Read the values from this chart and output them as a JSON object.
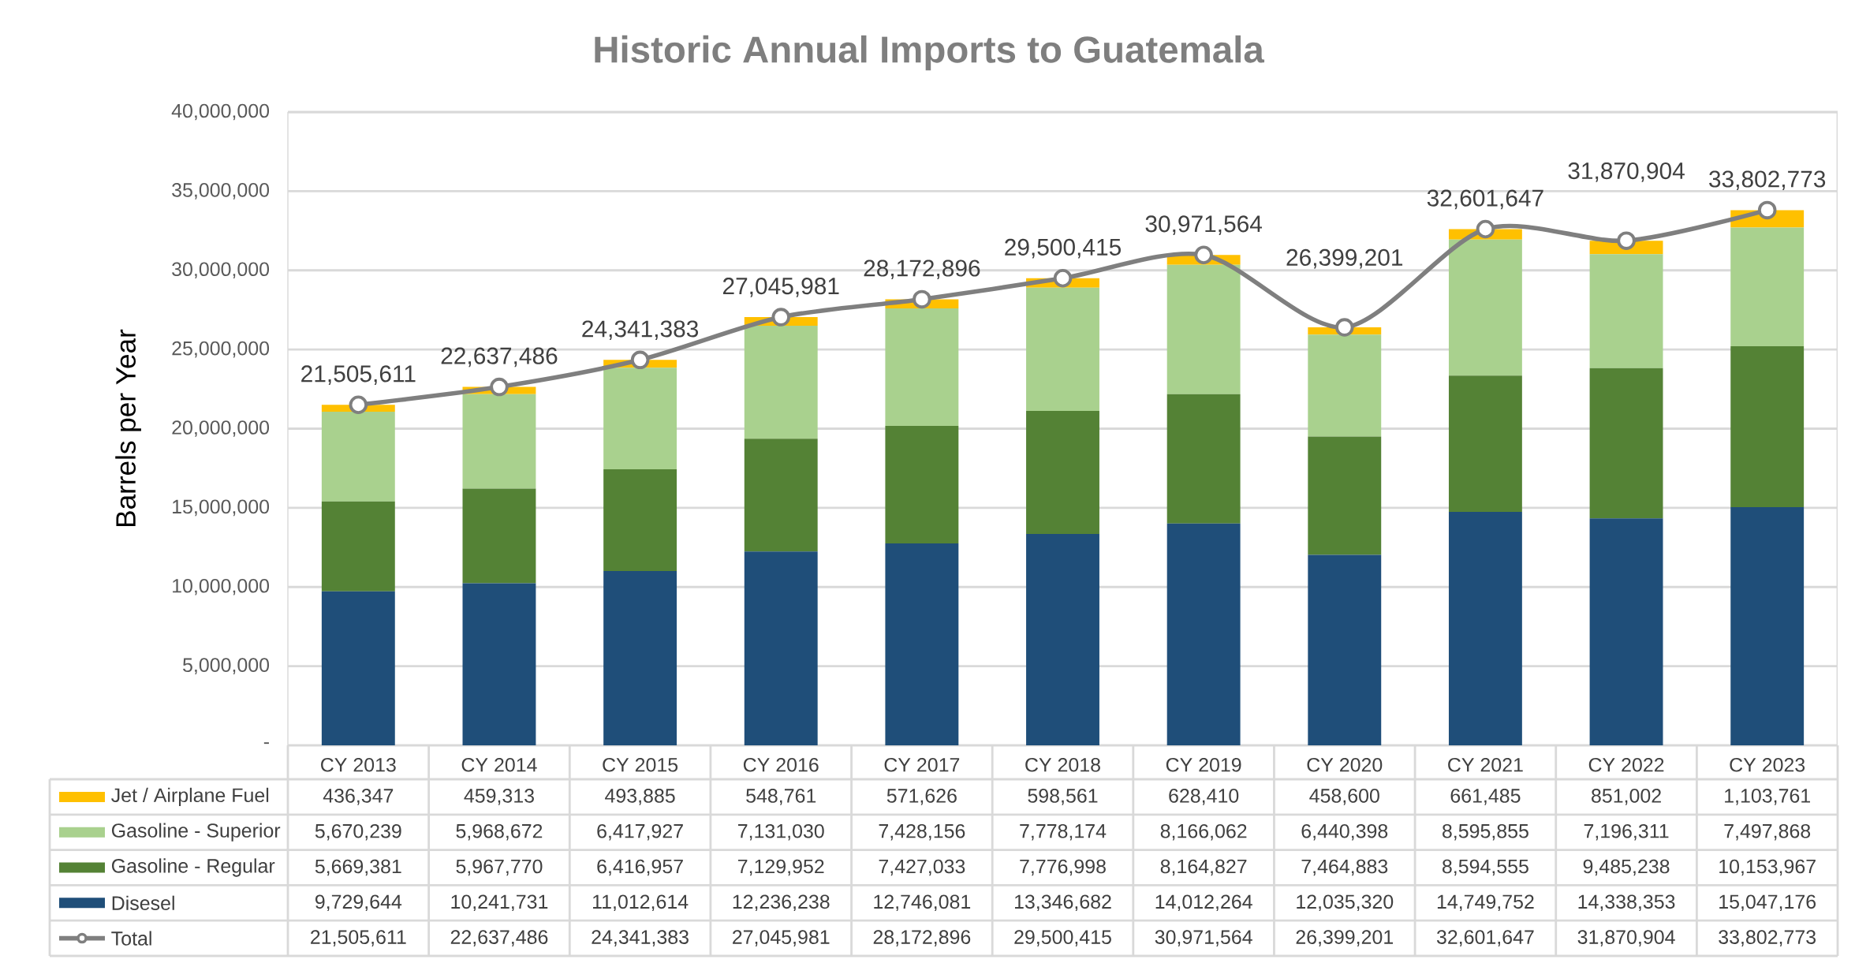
{
  "chart_data": {
    "type": "bar",
    "title": "Historic Annual Imports to Guatemala",
    "ylabel": "Barrels per Year",
    "categories": [
      "CY 2013",
      "CY 2014",
      "CY 2015",
      "CY 2016",
      "CY 2017",
      "CY 2018",
      "CY 2019",
      "CY 2020",
      "CY 2021",
      "CY 2022",
      "CY 2023"
    ],
    "stacked": true,
    "grid": "y",
    "legend": "bottom",
    "ylim": [
      0,
      40000000
    ],
    "yticks": [
      {
        "value": 0,
        "label": "-"
      },
      {
        "value": 5000000,
        "label": "5,000,000"
      },
      {
        "value": 10000000,
        "label": "10,000,000"
      },
      {
        "value": 15000000,
        "label": "15,000,000"
      },
      {
        "value": 20000000,
        "label": "20,000,000"
      },
      {
        "value": 25000000,
        "label": "25,000,000"
      },
      {
        "value": 30000000,
        "label": "30,000,000"
      },
      {
        "value": 35000000,
        "label": "35,000,000"
      },
      {
        "value": 40000000,
        "label": "40,000,000"
      }
    ],
    "series": [
      {
        "name": "Disesel",
        "color": "#1f4e79",
        "values": [
          9729644,
          10241731,
          11012614,
          12236238,
          12746081,
          13346682,
          14012264,
          12035320,
          14749752,
          14338353,
          15047176
        ],
        "value_labels": [
          "9,729,644",
          "10,241,731",
          "11,012,614",
          "12,236,238",
          "12,746,081",
          "13,346,682",
          "14,012,264",
          "12,035,320",
          "14,749,752",
          "14,338,353",
          "15,047,176"
        ]
      },
      {
        "name": "Gasoline - Regular",
        "color": "#548235",
        "values": [
          5669381,
          5967770,
          6416957,
          7129952,
          7427033,
          7776998,
          8164827,
          7464883,
          8594555,
          9485238,
          10153967
        ],
        "value_labels": [
          "5,669,381",
          "5,967,770",
          "6,416,957",
          "7,129,952",
          "7,427,033",
          "7,776,998",
          "8,164,827",
          "7,464,883",
          "8,594,555",
          "9,485,238",
          "10,153,967"
        ]
      },
      {
        "name": "Gasoline - Superior",
        "color": "#a9d18e",
        "values": [
          5670239,
          5968672,
          6417927,
          7131030,
          7428156,
          7778174,
          8166062,
          6440398,
          8595855,
          7196311,
          7497868
        ],
        "value_labels": [
          "5,670,239",
          "5,968,672",
          "6,417,927",
          "7,131,030",
          "7,428,156",
          "7,778,174",
          "8,166,062",
          "6,440,398",
          "8,595,855",
          "7,196,311",
          "7,497,868"
        ]
      },
      {
        "name": "Jet / Airplane Fuel",
        "color": "#ffc000",
        "values": [
          436347,
          459313,
          493885,
          548761,
          571626,
          598561,
          628410,
          458600,
          661485,
          851002,
          1103761
        ],
        "value_labels": [
          "436,347",
          "459,313",
          "493,885",
          "548,761",
          "571,626",
          "598,561",
          "628,410",
          "458,600",
          "661,485",
          "851,002",
          "1,103,761"
        ]
      },
      {
        "name": "Total",
        "type": "line",
        "color": "#7f7f7f",
        "marker": "circle",
        "values": [
          21505611,
          22637486,
          24341383,
          27045981,
          28172896,
          29500415,
          30971564,
          26399201,
          32601647,
          31870904,
          33802773
        ],
        "value_labels": [
          "21,505,611",
          "22,637,486",
          "24,341,383",
          "27,045,981",
          "28,172,896",
          "29,500,415",
          "30,971,564",
          "26,399,201",
          "32,601,647",
          "31,870,904",
          "33,802,773"
        ]
      }
    ]
  }
}
